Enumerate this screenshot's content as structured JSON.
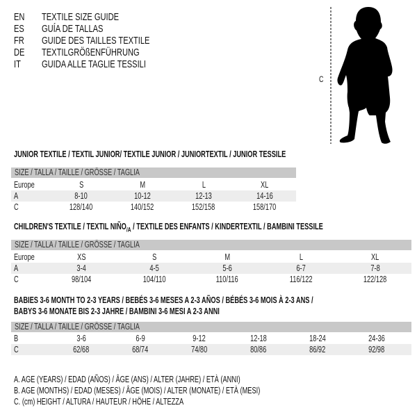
{
  "languages": [
    {
      "code": "EN",
      "name": "TEXTILE SIZE GUIDE"
    },
    {
      "code": "ES",
      "name": "GUÍA DE TALLAS"
    },
    {
      "code": "FR",
      "name": "GUIDE DES TAILLES TEXTILE"
    },
    {
      "code": "DE",
      "name": "TEXTILGRÖßENFÜHRUNG"
    },
    {
      "code": "IT",
      "name": "GUIDA ALLE TAGLIE TESSILI"
    }
  ],
  "figure": {
    "label": "C",
    "icon": "child-silhouette"
  },
  "size_header": "SIZE / TALLA / TAILLE / GRÖSSE / TAGLIA",
  "junior": {
    "title": "JUNIOR TEXTILE / TEXTIL JUNIOR/ TEXTILE JUNIOR / JUNIORTEXTIL / JUNIOR TESSILE",
    "rows": [
      {
        "label": "Europe",
        "values": [
          "S",
          "M",
          "L",
          "XL"
        ]
      },
      {
        "label": "A",
        "values": [
          "8-10",
          "10-12",
          "12-13",
          "14-16"
        ]
      },
      {
        "label": "C",
        "values": [
          "128/140",
          "140/152",
          "152/158",
          "158/170"
        ]
      }
    ]
  },
  "children": {
    "title_a": "CHILDREN'S TEXTILE / TEXTIL NIÑO",
    "title_sub": "/A",
    "title_b": " / TEXTILE DES ENFANTS / KINDERTEXTIL / BAMBINI TESSILE",
    "rows": [
      {
        "label": "Europe",
        "values": [
          "XS",
          "S",
          "M",
          "L",
          "XL"
        ]
      },
      {
        "label": "A",
        "values": [
          "3-4",
          "4-5",
          "5-6",
          "6-7",
          "7-8"
        ]
      },
      {
        "label": "C",
        "values": [
          "98/104",
          "104/110",
          "110/116",
          "116/122",
          "122/128"
        ]
      }
    ]
  },
  "babies": {
    "title_line1": "BABIES 3-6 MONTH TO 2-3 YEARS / BEBÉS 3-6 MESES A 2-3 AÑOS / BÉBÉS 3-6 MOIS À 2-3 ANS /",
    "title_line2": "BABYS 3-6 MONATE BIS 2-3 JAHRE / BAMBINI 3-6 MESI A 2-3 ANNI",
    "rows": [
      {
        "label": "B",
        "values": [
          "3-6",
          "6-9",
          "9-12",
          "12-18",
          "18-24",
          "24-36"
        ]
      },
      {
        "label": "C",
        "values": [
          "62/68",
          "68/74",
          "74/80",
          "80/86",
          "86/92",
          "92/98"
        ]
      }
    ]
  },
  "legend": [
    "A. AGE (YEARS) / EDAD (AÑOS) / ÂGE (ANS) / ALTER (JAHRE) / ETÀ (ANNI)",
    "B. AGE (MONTHS) / EDAD (MESES) / ÂGE (MOIS) / ALTER (MONATE) / ETÀ (MESI)",
    "C. (cm) HEIGHT / ALTURA / HAUTEUR / HÖHE / ALTEZZA"
  ]
}
